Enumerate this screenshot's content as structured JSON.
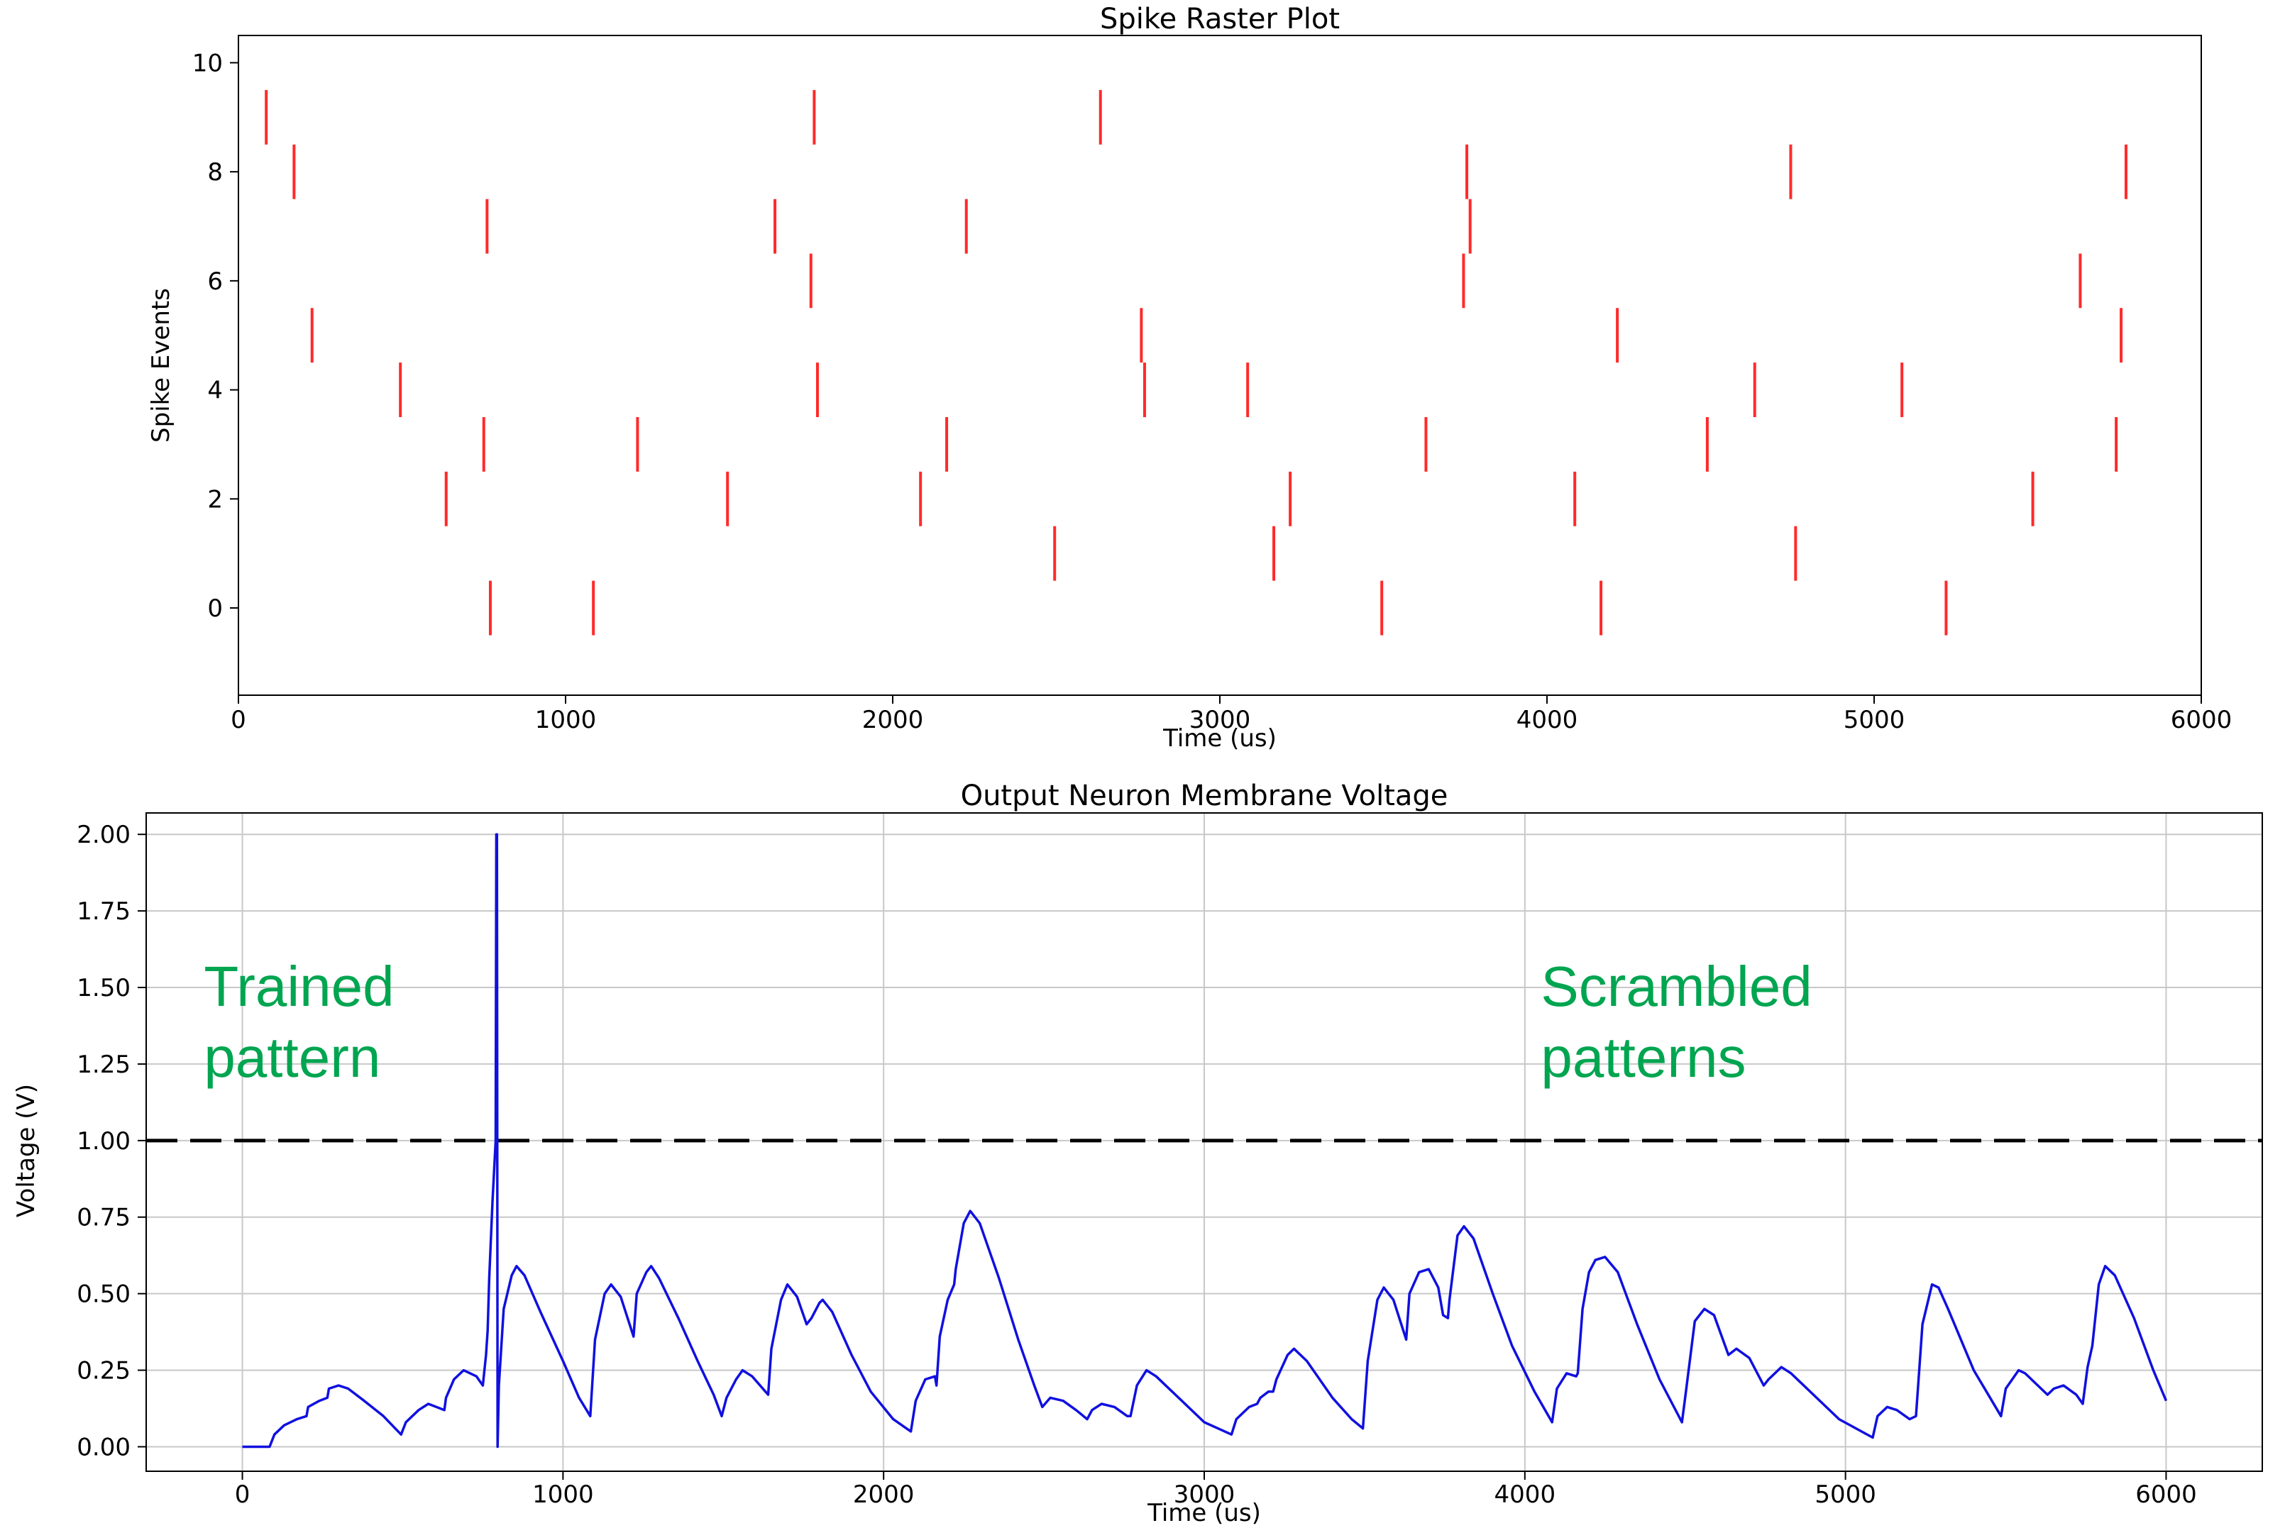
{
  "chart_data": [
    {
      "type": "raster",
      "title": "Spike Raster Plot",
      "xlabel": "Time (us)",
      "ylabel": "Spike Events",
      "xlim": [
        0,
        6000
      ],
      "ylim": [
        -1.6,
        10.5
      ],
      "xticks": [
        0,
        1000,
        2000,
        3000,
        4000,
        5000,
        6000
      ],
      "yticks": [
        0,
        2,
        4,
        6,
        8,
        10
      ],
      "grid": false,
      "color": "#ff2a2a",
      "series": [
        {
          "row": 0,
          "times": [
            770,
            1085,
            3495,
            4165,
            5220
          ]
        },
        {
          "row": 1,
          "times": [
            2495,
            3165,
            4760
          ]
        },
        {
          "row": 2,
          "times": [
            635,
            1495,
            2085,
            3215,
            4085,
            5485
          ]
        },
        {
          "row": 3,
          "times": [
            750,
            1220,
            2165,
            3630,
            4490,
            5740
          ]
        },
        {
          "row": 4,
          "times": [
            495,
            1770,
            2770,
            3085,
            4635,
            5085
          ]
        },
        {
          "row": 5,
          "times": [
            225,
            2760,
            4215,
            5755
          ]
        },
        {
          "row": 6,
          "times": [
            1750,
            3745,
            5630
          ]
        },
        {
          "row": 7,
          "times": [
            760,
            1640,
            2225,
            3765
          ]
        },
        {
          "row": 8,
          "times": [
            170,
            3755,
            4745,
            5770
          ]
        },
        {
          "row": 9,
          "times": [
            85,
            1760,
            2635
          ]
        }
      ]
    },
    {
      "type": "line",
      "title": "Output Neuron Membrane Voltage",
      "xlabel": "Time (us)",
      "ylabel": "Voltage (V)",
      "xlim": [
        -300,
        6300
      ],
      "ylim": [
        -0.08,
        2.07
      ],
      "xticks": [
        0,
        1000,
        2000,
        3000,
        4000,
        5000,
        6000
      ],
      "yticks": [
        0.0,
        0.25,
        0.5,
        0.75,
        1.0,
        1.25,
        1.5,
        1.75,
        2.0
      ],
      "ytick_labels": [
        "0.00",
        "0.25",
        "0.50",
        "0.75",
        "1.00",
        "1.25",
        "1.50",
        "1.75",
        "2.00"
      ],
      "grid": true,
      "threshold": 1.0,
      "line_color": "#1010e0",
      "threshold_color": "#000000",
      "annotation_color": "#00a550",
      "annotations": [
        {
          "lines": [
            "Trained",
            "pattern"
          ],
          "x": -120,
          "y": 1.44
        },
        {
          "lines": [
            "Scrambled",
            "patterns"
          ],
          "x": 4050,
          "y": 1.44
        }
      ],
      "series": [
        {
          "points": [
            [
              0,
              0.0
            ],
            [
              85,
              0.0
            ],
            [
              100,
              0.04
            ],
            [
              130,
              0.07
            ],
            [
              170,
              0.09
            ],
            [
              200,
              0.1
            ],
            [
              205,
              0.13
            ],
            [
              240,
              0.15
            ],
            [
              265,
              0.16
            ],
            [
              270,
              0.19
            ],
            [
              300,
              0.2
            ],
            [
              330,
              0.19
            ],
            [
              380,
              0.15
            ],
            [
              440,
              0.1
            ],
            [
              495,
              0.04
            ],
            [
              510,
              0.08
            ],
            [
              550,
              0.12
            ],
            [
              580,
              0.14
            ],
            [
              630,
              0.12
            ],
            [
              635,
              0.16
            ],
            [
              660,
              0.22
            ],
            [
              690,
              0.25
            ],
            [
              730,
              0.23
            ],
            [
              750,
              0.2
            ],
            [
              760,
              0.3
            ],
            [
              765,
              0.38
            ],
            [
              770,
              0.55
            ],
            [
              780,
              0.8
            ],
            [
              790,
              1.0
            ],
            [
              792,
              2.0
            ],
            [
              794,
              2.0
            ],
            [
              796,
              0.0
            ],
            [
              800,
              0.2
            ],
            [
              815,
              0.45
            ],
            [
              840,
              0.56
            ],
            [
              855,
              0.59
            ],
            [
              880,
              0.56
            ],
            [
              930,
              0.44
            ],
            [
              1000,
              0.28
            ],
            [
              1050,
              0.16
            ],
            [
              1085,
              0.1
            ],
            [
              1100,
              0.35
            ],
            [
              1130,
              0.5
            ],
            [
              1150,
              0.53
            ],
            [
              1180,
              0.49
            ],
            [
              1220,
              0.36
            ],
            [
              1230,
              0.5
            ],
            [
              1260,
              0.57
            ],
            [
              1275,
              0.59
            ],
            [
              1300,
              0.55
            ],
            [
              1360,
              0.42
            ],
            [
              1420,
              0.28
            ],
            [
              1470,
              0.17
            ],
            [
              1495,
              0.1
            ],
            [
              1510,
              0.16
            ],
            [
              1540,
              0.22
            ],
            [
              1560,
              0.25
            ],
            [
              1590,
              0.23
            ],
            [
              1640,
              0.17
            ],
            [
              1650,
              0.32
            ],
            [
              1680,
              0.48
            ],
            [
              1700,
              0.53
            ],
            [
              1730,
              0.49
            ],
            [
              1760,
              0.4
            ],
            [
              1775,
              0.42
            ],
            [
              1800,
              0.47
            ],
            [
              1810,
              0.48
            ],
            [
              1840,
              0.44
            ],
            [
              1900,
              0.3
            ],
            [
              1960,
              0.18
            ],
            [
              2030,
              0.09
            ],
            [
              2085,
              0.05
            ],
            [
              2100,
              0.15
            ],
            [
              2130,
              0.22
            ],
            [
              2160,
              0.23
            ],
            [
              2165,
              0.2
            ],
            [
              2175,
              0.36
            ],
            [
              2200,
              0.48
            ],
            [
              2220,
              0.53
            ],
            [
              2225,
              0.58
            ],
            [
              2250,
              0.73
            ],
            [
              2270,
              0.77
            ],
            [
              2300,
              0.73
            ],
            [
              2360,
              0.55
            ],
            [
              2420,
              0.35
            ],
            [
              2470,
              0.2
            ],
            [
              2495,
              0.13
            ],
            [
              2520,
              0.16
            ],
            [
              2560,
              0.15
            ],
            [
              2600,
              0.12
            ],
            [
              2635,
              0.09
            ],
            [
              2650,
              0.12
            ],
            [
              2680,
              0.14
            ],
            [
              2720,
              0.13
            ],
            [
              2760,
              0.1
            ],
            [
              2770,
              0.1
            ],
            [
              2790,
              0.2
            ],
            [
              2820,
              0.25
            ],
            [
              2850,
              0.23
            ],
            [
              2920,
              0.16
            ],
            [
              3000,
              0.08
            ],
            [
              3085,
              0.04
            ],
            [
              3100,
              0.09
            ],
            [
              3140,
              0.13
            ],
            [
              3165,
              0.14
            ],
            [
              3175,
              0.16
            ],
            [
              3200,
              0.18
            ],
            [
              3215,
              0.18
            ],
            [
              3225,
              0.22
            ],
            [
              3260,
              0.3
            ],
            [
              3280,
              0.32
            ],
            [
              3320,
              0.28
            ],
            [
              3400,
              0.16
            ],
            [
              3460,
              0.09
            ],
            [
              3495,
              0.06
            ],
            [
              3510,
              0.28
            ],
            [
              3540,
              0.48
            ],
            [
              3560,
              0.52
            ],
            [
              3590,
              0.48
            ],
            [
              3630,
              0.35
            ],
            [
              3640,
              0.5
            ],
            [
              3670,
              0.57
            ],
            [
              3700,
              0.58
            ],
            [
              3730,
              0.52
            ],
            [
              3745,
              0.43
            ],
            [
              3760,
              0.42
            ],
            [
              3765,
              0.48
            ],
            [
              3790,
              0.69
            ],
            [
              3810,
              0.72
            ],
            [
              3840,
              0.68
            ],
            [
              3900,
              0.5
            ],
            [
              3960,
              0.33
            ],
            [
              4030,
              0.18
            ],
            [
              4085,
              0.08
            ],
            [
              4100,
              0.19
            ],
            [
              4130,
              0.24
            ],
            [
              4160,
              0.23
            ],
            [
              4165,
              0.24
            ],
            [
              4180,
              0.45
            ],
            [
              4200,
              0.57
            ],
            [
              4220,
              0.61
            ],
            [
              4250,
              0.62
            ],
            [
              4290,
              0.57
            ],
            [
              4350,
              0.4
            ],
            [
              4420,
              0.22
            ],
            [
              4490,
              0.08
            ],
            [
              4500,
              0.16
            ],
            [
              4530,
              0.41
            ],
            [
              4560,
              0.45
            ],
            [
              4590,
              0.43
            ],
            [
              4635,
              0.3
            ],
            [
              4660,
              0.32
            ],
            [
              4700,
              0.29
            ],
            [
              4745,
              0.2
            ],
            [
              4760,
              0.22
            ],
            [
              4800,
              0.26
            ],
            [
              4830,
              0.24
            ],
            [
              4900,
              0.17
            ],
            [
              4980,
              0.09
            ],
            [
              5085,
              0.03
            ],
            [
              5100,
              0.1
            ],
            [
              5130,
              0.13
            ],
            [
              5160,
              0.12
            ],
            [
              5200,
              0.09
            ],
            [
              5220,
              0.1
            ],
            [
              5240,
              0.4
            ],
            [
              5270,
              0.53
            ],
            [
              5290,
              0.52
            ],
            [
              5320,
              0.45
            ],
            [
              5400,
              0.25
            ],
            [
              5485,
              0.1
            ],
            [
              5500,
              0.19
            ],
            [
              5540,
              0.25
            ],
            [
              5560,
              0.24
            ],
            [
              5630,
              0.17
            ],
            [
              5650,
              0.19
            ],
            [
              5680,
              0.2
            ],
            [
              5720,
              0.17
            ],
            [
              5740,
              0.14
            ],
            [
              5755,
              0.26
            ],
            [
              5770,
              0.33
            ],
            [
              5790,
              0.53
            ],
            [
              5810,
              0.59
            ],
            [
              5840,
              0.56
            ],
            [
              5900,
              0.42
            ],
            [
              5960,
              0.25
            ],
            [
              6000,
              0.15
            ]
          ]
        }
      ]
    }
  ]
}
